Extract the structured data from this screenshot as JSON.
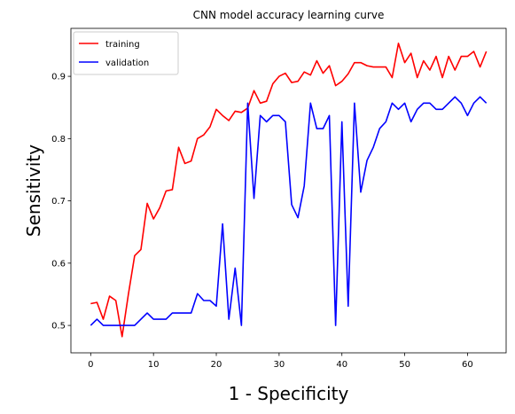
{
  "chart_data": {
    "type": "line",
    "title": "CNN model accuracy learning curve",
    "xlabel": "1 - Specificity",
    "ylabel": "Sensitivity",
    "xlim": [
      -3.15,
      66.15
    ],
    "ylim": [
      0.456,
      0.977
    ],
    "xticks": [
      0,
      10,
      20,
      30,
      40,
      50,
      60
    ],
    "yticks": [
      0.5,
      0.6,
      0.7,
      0.8,
      0.9
    ],
    "legend_position": "top-left",
    "grid": false,
    "x": [
      0,
      1,
      2,
      3,
      4,
      5,
      6,
      7,
      8,
      9,
      10,
      11,
      12,
      13,
      14,
      15,
      16,
      17,
      18,
      19,
      20,
      21,
      22,
      23,
      24,
      25,
      26,
      27,
      28,
      29,
      30,
      31,
      32,
      33,
      34,
      35,
      36,
      37,
      38,
      39,
      40,
      41,
      42,
      43,
      44,
      45,
      46,
      47,
      48,
      49,
      50,
      51,
      52,
      53,
      54,
      55,
      56,
      57,
      58,
      59,
      60,
      61,
      62,
      63
    ],
    "series": [
      {
        "name": "training",
        "color": "#ff0000",
        "values": [
          0.535,
          0.537,
          0.51,
          0.547,
          0.54,
          0.482,
          0.55,
          0.612,
          0.622,
          0.696,
          0.671,
          0.689,
          0.716,
          0.718,
          0.786,
          0.76,
          0.764,
          0.8,
          0.806,
          0.819,
          0.847,
          0.837,
          0.829,
          0.844,
          0.842,
          0.849,
          0.877,
          0.857,
          0.86,
          0.888,
          0.9,
          0.905,
          0.89,
          0.892,
          0.907,
          0.902,
          0.925,
          0.905,
          0.917,
          0.885,
          0.892,
          0.904,
          0.922,
          0.922,
          0.917,
          0.915,
          0.915,
          0.915,
          0.898,
          0.953,
          0.922,
          0.937,
          0.898,
          0.925,
          0.91,
          0.932,
          0.898,
          0.932,
          0.91,
          0.932,
          0.932,
          0.94,
          0.915,
          0.94
        ]
      },
      {
        "name": "validation",
        "color": "#0000ff",
        "values": [
          0.5,
          0.51,
          0.5,
          0.5,
          0.5,
          0.5,
          0.5,
          0.5,
          0.51,
          0.52,
          0.51,
          0.51,
          0.51,
          0.52,
          0.52,
          0.52,
          0.52,
          0.551,
          0.54,
          0.54,
          0.531,
          0.663,
          0.51,
          0.592,
          0.5,
          0.857,
          0.704,
          0.837,
          0.827,
          0.837,
          0.837,
          0.827,
          0.694,
          0.673,
          0.724,
          0.857,
          0.816,
          0.816,
          0.837,
          0.5,
          0.827,
          0.531,
          0.857,
          0.714,
          0.765,
          0.786,
          0.816,
          0.827,
          0.857,
          0.847,
          0.857,
          0.827,
          0.847,
          0.857,
          0.857,
          0.847,
          0.847,
          0.857,
          0.867,
          0.857,
          0.837,
          0.857,
          0.867,
          0.857
        ]
      }
    ]
  }
}
